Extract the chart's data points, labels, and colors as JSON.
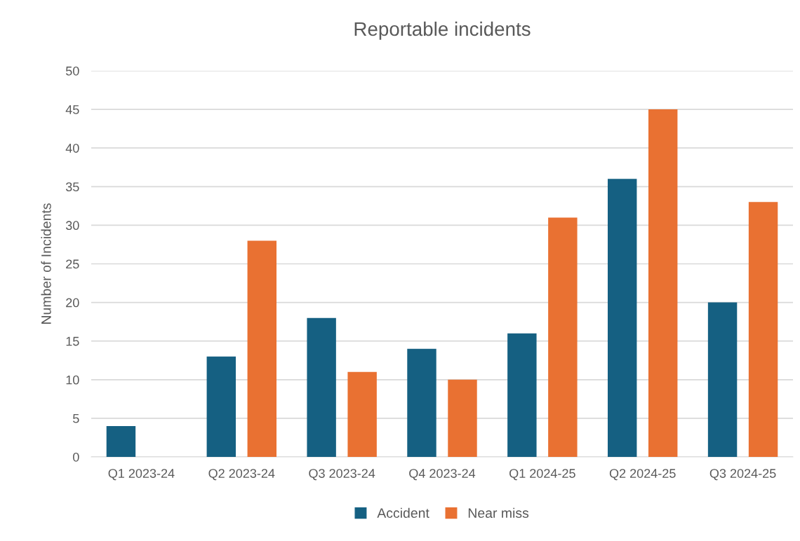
{
  "chart_data": {
    "type": "bar",
    "title": "Reportable incidents",
    "ylabel": "Number of Incidents",
    "categories": [
      "Q1 2023-24",
      "Q2 2023-24",
      "Q3 2023-24",
      "Q4 2023-24",
      "Q1 2024-25",
      "Q2 2024-25",
      "Q3 2024-25"
    ],
    "series": [
      {
        "name": "Accident",
        "color": "#156082",
        "values": [
          4,
          13,
          18,
          14,
          16,
          36,
          20
        ]
      },
      {
        "name": "Near miss",
        "color": "#e97132",
        "values": [
          null,
          28,
          11,
          10,
          31,
          45,
          33
        ]
      }
    ],
    "ylim": [
      0,
      50
    ],
    "yticks": [
      0,
      5,
      10,
      15,
      20,
      25,
      30,
      35,
      40,
      45,
      50
    ],
    "grid": "y",
    "legend": "bottom"
  }
}
